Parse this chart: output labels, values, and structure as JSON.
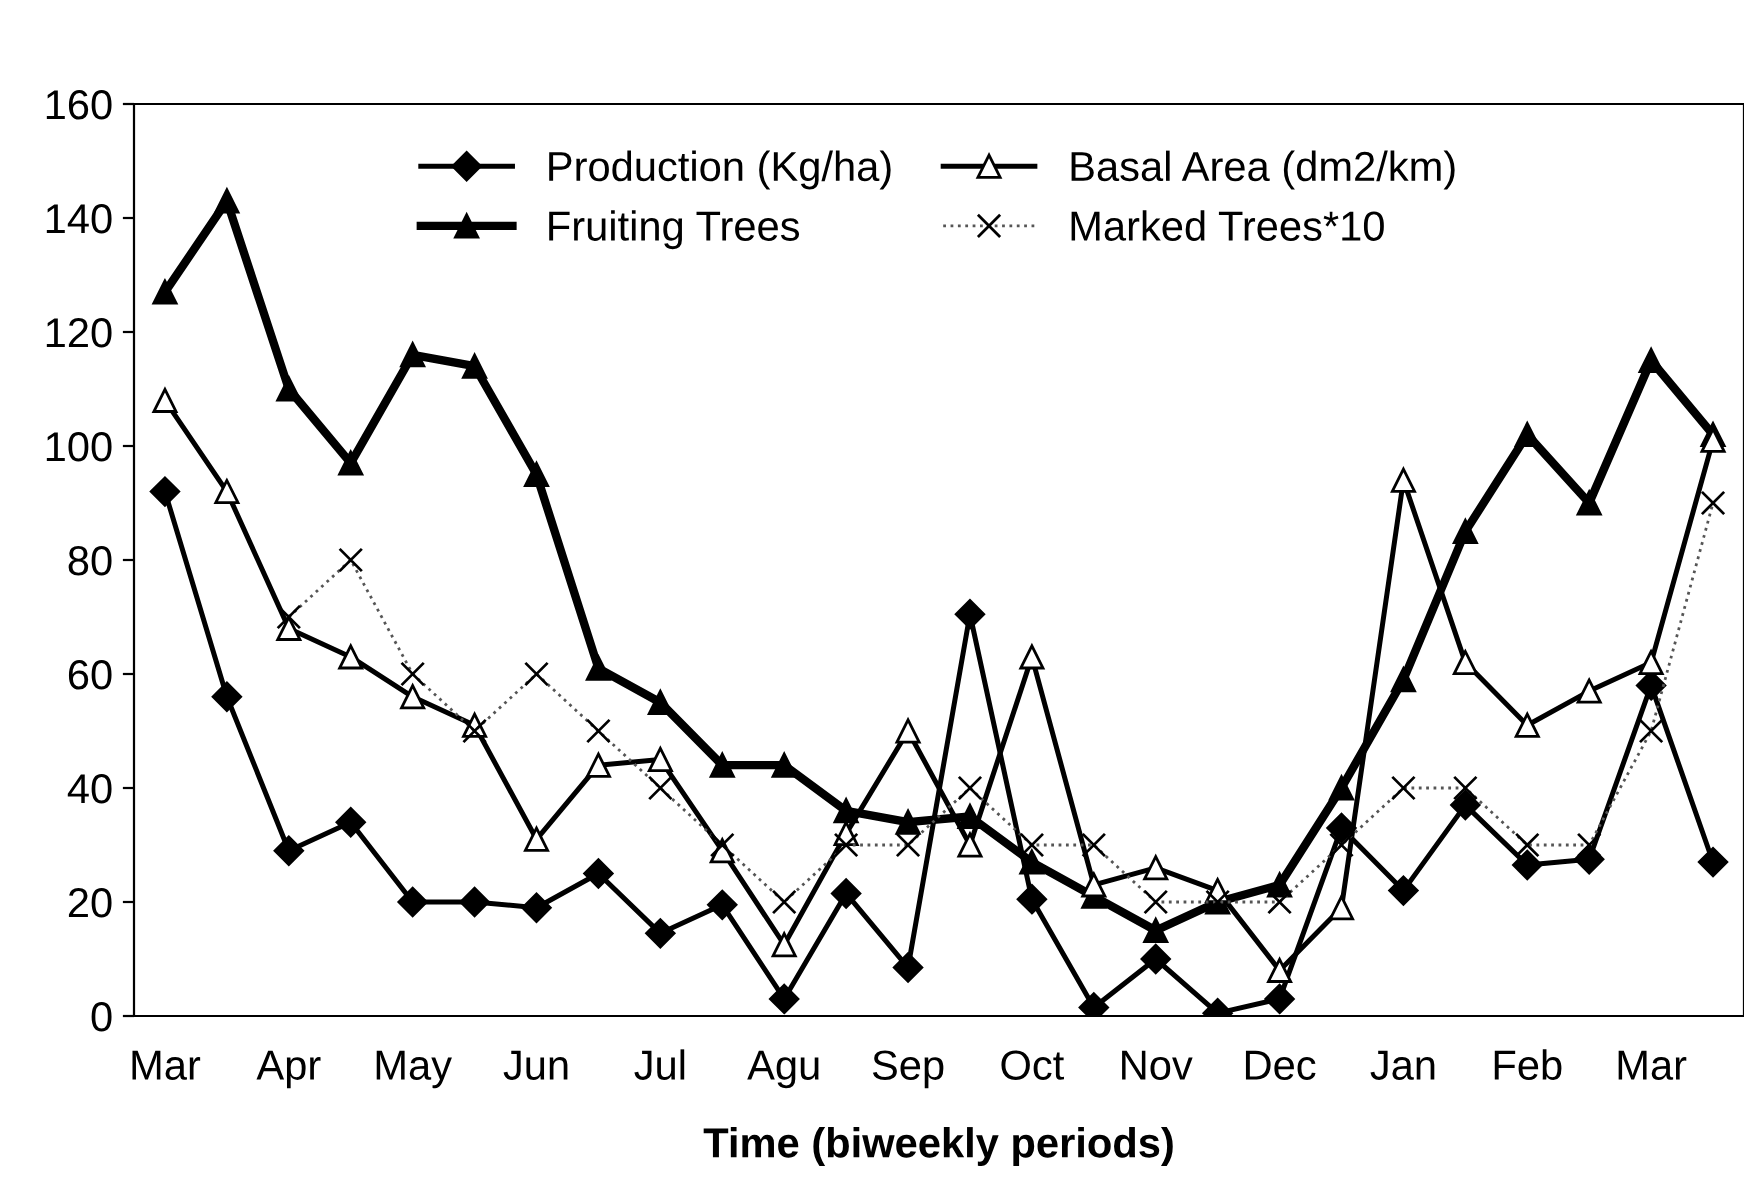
{
  "chart_data": {
    "type": "line",
    "xlabel": "Time (biweekly periods)",
    "categories": [
      "Mar",
      null,
      "Apr",
      null,
      "May",
      null,
      "Jun",
      null,
      "Jul",
      null,
      "Agu",
      null,
      "Sep",
      null,
      "Oct",
      null,
      "Nov",
      null,
      "Dec",
      null,
      "Jan",
      null,
      "Feb",
      null,
      "Mar",
      null
    ],
    "ylim": [
      0,
      160
    ],
    "yticks": [
      0,
      20,
      40,
      60,
      80,
      100,
      120,
      140,
      160
    ],
    "grid": false,
    "legend": "top",
    "series": [
      {
        "name": "Production (Kg/ha)",
        "color": "#000000",
        "marker": "diamond",
        "line_style": "solid",
        "values": [
          92,
          56,
          29,
          34,
          20,
          20,
          19,
          25,
          14.5,
          19.5,
          3,
          21.5,
          8.5,
          70.5,
          20.5,
          1.5,
          10,
          0.5,
          3,
          33,
          22,
          37,
          26.5,
          27.5,
          58,
          27
        ]
      },
      {
        "name": "Fruiting Trees",
        "color": "#000000",
        "marker": "triangle",
        "line_style": "solid",
        "values": [
          127,
          143,
          110,
          97,
          116,
          114,
          95,
          61,
          55,
          44,
          44,
          36,
          34,
          35,
          27,
          21,
          15,
          20,
          23,
          40,
          59,
          85,
          102,
          90,
          115,
          102
        ]
      },
      {
        "name": "Basal Area (dm2/km)",
        "color": "#000000",
        "marker": "triangle",
        "line_style": "solid",
        "values": [
          108,
          92,
          68,
          63,
          56,
          51,
          31,
          44,
          45,
          29,
          12.5,
          32,
          50,
          30,
          63,
          23,
          26,
          22,
          8,
          19,
          94,
          62,
          51,
          57,
          62,
          101
        ]
      },
      {
        "name": "Marked Trees*10",
        "color": "#555555",
        "marker": "cross",
        "line_style": "dotted",
        "values": [
          null,
          null,
          70,
          80,
          60,
          50,
          60,
          50,
          40,
          30,
          20,
          30,
          30,
          40,
          30,
          30,
          20,
          20,
          20,
          30,
          40,
          40,
          30,
          30,
          50,
          90
        ]
      }
    ]
  }
}
